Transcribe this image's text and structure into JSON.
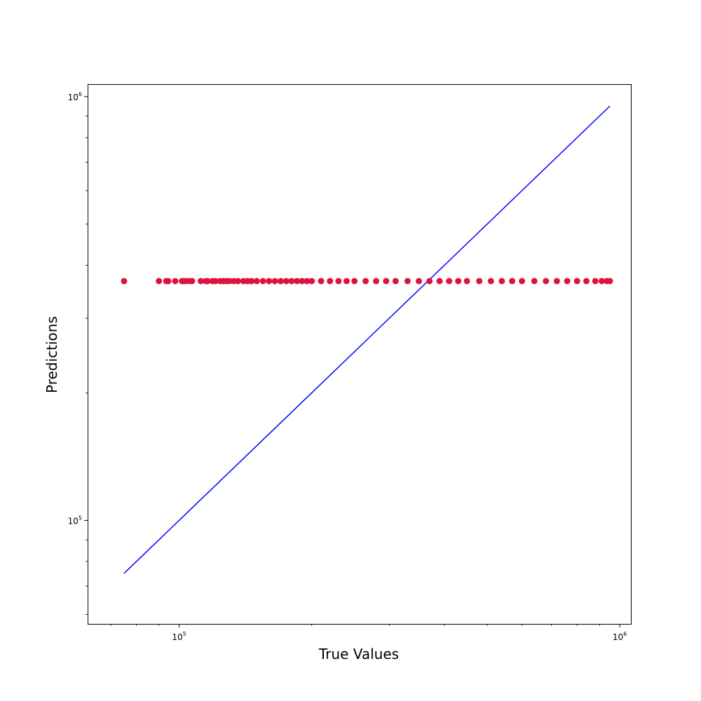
{
  "chart_data": {
    "type": "scatter",
    "title": "",
    "xlabel": "True Values",
    "ylabel": "Predictions",
    "xscale": "log",
    "yscale": "log",
    "xlim": [
      62000,
      1060000
    ],
    "ylim": [
      57000,
      1070000
    ],
    "grid": false,
    "x_major_ticks": [
      {
        "value": 100000,
        "base": "10",
        "exp": "5"
      },
      {
        "value": 1000000,
        "base": "10",
        "exp": "6"
      }
    ],
    "y_major_ticks": [
      {
        "value": 100000,
        "base": "10",
        "exp": "5"
      },
      {
        "value": 1000000,
        "base": "10",
        "exp": "6"
      }
    ],
    "x_minor_ticks": [
      70000,
      80000,
      90000,
      200000,
      300000,
      400000,
      500000,
      600000,
      700000,
      800000,
      900000
    ],
    "y_minor_ticks": [
      60000,
      70000,
      80000,
      90000,
      200000,
      300000,
      400000,
      500000,
      600000,
      700000,
      800000,
      900000
    ],
    "series": [
      {
        "kind": "scatter",
        "color": "#dc143c",
        "prediction_value": 367000,
        "x": [
          75000,
          90000,
          93500,
          94500,
          98000,
          101500,
          102000,
          103500,
          105500,
          107000,
          112000,
          115000,
          116000,
          119000,
          121000,
          124000,
          126000,
          128000,
          130000,
          133000,
          136000,
          140000,
          143000,
          146000,
          150000,
          155000,
          160000,
          165000,
          170000,
          175000,
          180000,
          185000,
          190000,
          195000,
          200000,
          210000,
          220000,
          230000,
          240000,
          250000,
          265000,
          280000,
          295000,
          310000,
          330000,
          350000,
          370000,
          390000,
          410000,
          430000,
          450000,
          480000,
          510000,
          540000,
          570000,
          600000,
          640000,
          680000,
          720000,
          760000,
          800000,
          840000,
          880000,
          910000,
          935000,
          950000
        ]
      },
      {
        "kind": "line",
        "color": "#0000ff",
        "x": [
          75000,
          950000
        ],
        "y": [
          75000,
          950000
        ]
      }
    ]
  }
}
